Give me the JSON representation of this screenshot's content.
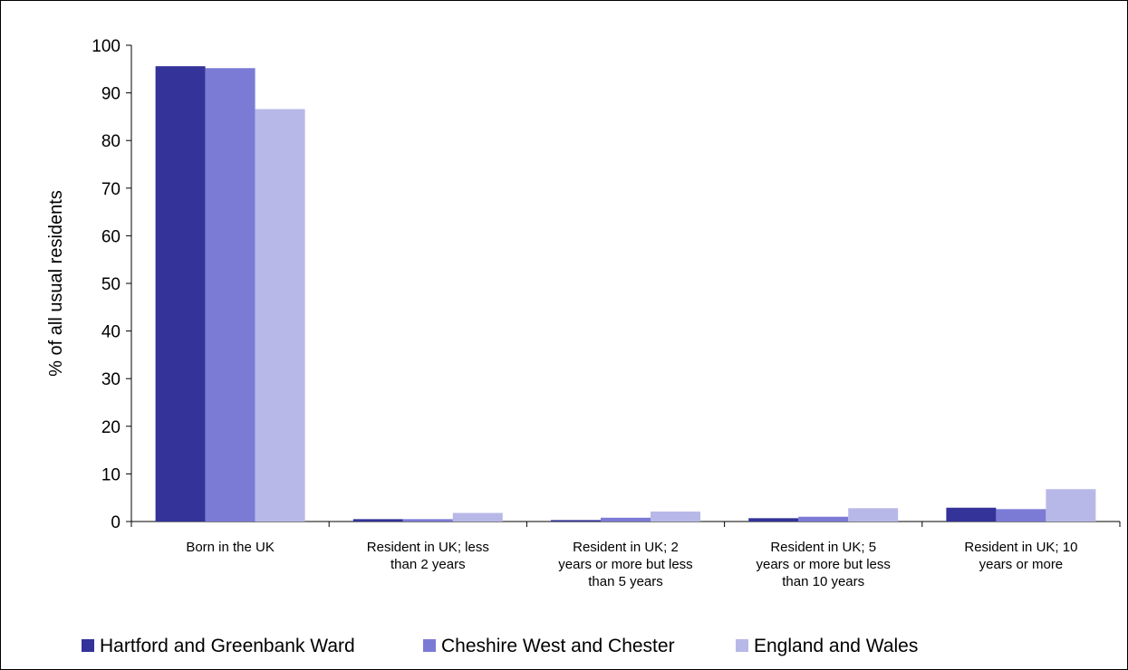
{
  "chart_data": {
    "type": "bar",
    "ylabel": "% of all usual residents",
    "xlabel": "",
    "title": "",
    "ylim": [
      0,
      100
    ],
    "yticks": [
      0,
      10,
      20,
      30,
      40,
      50,
      60,
      70,
      80,
      90,
      100
    ],
    "grid": false,
    "legend_position": "bottom",
    "categories": [
      [
        "Born in the UK"
      ],
      [
        "Resident in UK; less",
        "than 2 years"
      ],
      [
        "Resident in UK; 2",
        "years or more but less",
        "than 5 years"
      ],
      [
        "Resident in UK; 5",
        "years or more but less",
        "than 10 years"
      ],
      [
        "Resident in UK; 10",
        "years or more"
      ]
    ],
    "series": [
      {
        "name": "Hartford and Greenbank Ward",
        "color": "#333399",
        "values": [
          95.6,
          0.5,
          0.3,
          0.7,
          2.9
        ]
      },
      {
        "name": "Cheshire West and Chester",
        "color": "#7b7bd6",
        "values": [
          95.2,
          0.5,
          0.8,
          1.0,
          2.6
        ]
      },
      {
        "name": "England and Wales",
        "color": "#b8b8e8",
        "values": [
          86.6,
          1.8,
          2.1,
          2.8,
          6.8
        ]
      }
    ]
  }
}
